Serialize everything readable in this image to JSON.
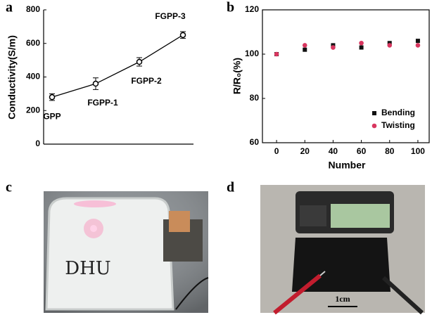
{
  "chart_data": [
    {
      "type": "line",
      "panel_label": "a",
      "ylabel": "Conductivity(S/m)",
      "categories": [
        "GPP",
        "FGPP-1",
        "FGPP-2",
        "FGPP-3"
      ],
      "values": [
        280,
        360,
        490,
        650
      ],
      "errors": [
        20,
        35,
        25,
        20
      ],
      "color": "#000000",
      "ylim": [
        0,
        800
      ],
      "yticks": [
        0,
        200,
        400,
        600,
        800
      ]
    },
    {
      "type": "scatter",
      "panel_label": "b",
      "xlabel": "Number",
      "ylabel": "R/R₀(%)",
      "x": [
        0,
        20,
        40,
        60,
        80,
        100
      ],
      "series": [
        {
          "name": "Bending",
          "color": "#111111",
          "marker": "square",
          "values": [
            100,
            102,
            104,
            103,
            105,
            106
          ]
        },
        {
          "name": "Twisting",
          "color": "#d8365f",
          "marker": "circle",
          "values": [
            100,
            104,
            103,
            105,
            104,
            104
          ]
        }
      ],
      "xlim": [
        -10,
        108
      ],
      "xticks": [
        0,
        20,
        40,
        60,
        80,
        100
      ],
      "ylim": [
        60,
        120
      ],
      "yticks": [
        60,
        80,
        100,
        120
      ],
      "legend": "lower right"
    }
  ],
  "photos": [
    {
      "panel_label": "c",
      "text": "DHU"
    },
    {
      "panel_label": "d",
      "scale_bar": "1cm"
    }
  ]
}
